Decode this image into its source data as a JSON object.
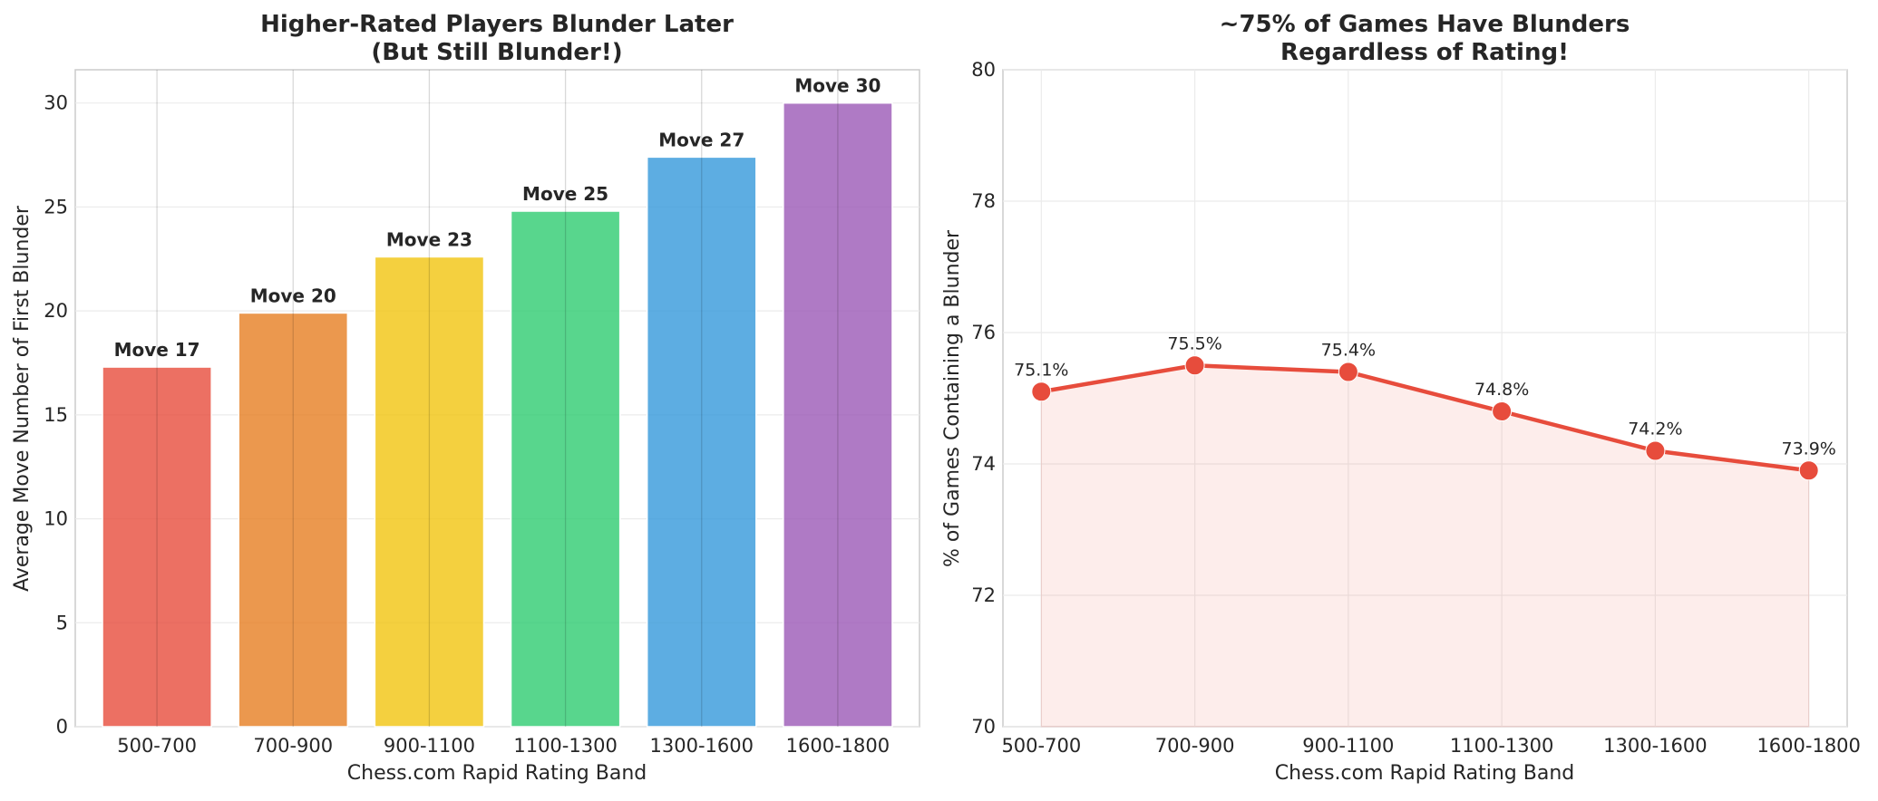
{
  "chart_data": [
    {
      "type": "bar",
      "title_lines": [
        "Higher-Rated Players Blunder Later",
        "(But Still Blunder!)"
      ],
      "xlabel": "Chess.com Rapid Rating Band",
      "ylabel": "Average Move Number of First Blunder",
      "categories": [
        "500-700",
        "700-900",
        "900-1100",
        "1100-1300",
        "1300-1600",
        "1600-1800"
      ],
      "values": [
        17.3,
        19.9,
        22.6,
        24.8,
        27.4,
        30.0
      ],
      "data_labels": [
        "Move 17",
        "Move 20",
        "Move 23",
        "Move 25",
        "Move 27",
        "Move 30"
      ],
      "colors": [
        "#e74c3c",
        "#e67e22",
        "#f1c40f",
        "#2ecc71",
        "#3498db",
        "#9b59b6"
      ],
      "ylim": [
        0,
        31.6
      ],
      "yticks": [
        0,
        5,
        10,
        15,
        20,
        25,
        30
      ],
      "grid": true,
      "legend": "none"
    },
    {
      "type": "line",
      "title_lines": [
        "~75% of Games Have Blunders",
        "Regardless of Rating!"
      ],
      "xlabel": "Chess.com Rapid Rating Band",
      "ylabel": "% of Games Containing a Blunder",
      "categories": [
        "500-700",
        "700-900",
        "900-1100",
        "1100-1300",
        "1300-1600",
        "1600-1800"
      ],
      "values": [
        75.1,
        75.5,
        75.4,
        74.8,
        74.2,
        73.9
      ],
      "data_labels": [
        "75.1%",
        "75.5%",
        "75.4%",
        "74.8%",
        "74.2%",
        "73.9%"
      ],
      "line_color": "#e74c3c",
      "fill_color": "#e74c3c",
      "ylim": [
        70,
        80
      ],
      "yticks": [
        70,
        72,
        74,
        76,
        78,
        80
      ],
      "grid": true,
      "legend": "none"
    }
  ]
}
